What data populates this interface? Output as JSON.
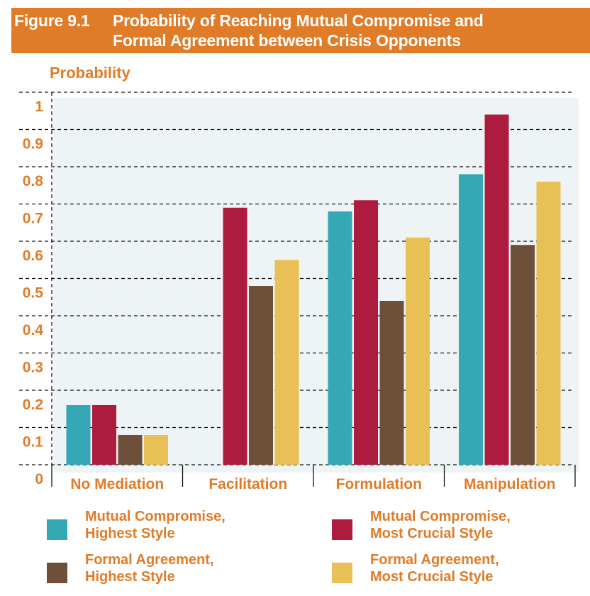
{
  "header": {
    "figure_number": "Figure 9.1",
    "title_line1": "Probability of Reaching Mutual Compromise and",
    "title_line2": "Formal Agreement between Crisis Opponents"
  },
  "colors": {
    "accent": "#E07B28",
    "plot_background": "#EEF4F5",
    "series": [
      "#35A8B5",
      "#AD1B3F",
      "#6E4F3A",
      "#E8C055"
    ]
  },
  "chart_data": {
    "type": "bar",
    "title": "Probability of Reaching Mutual Compromise and Formal Agreement between Crisis Opponents",
    "xlabel": "",
    "ylabel": "Probability",
    "ylim": [
      0,
      1
    ],
    "yticks": [
      0,
      0.1,
      0.2,
      0.3,
      0.4,
      0.5,
      0.6,
      0.7,
      0.8,
      0.9,
      1
    ],
    "ytick_labels": [
      "0",
      "0.1",
      "0.2",
      "0.3",
      "0.4",
      "0.5",
      "0.6",
      "0.7",
      "0.8",
      "0.9",
      "1"
    ],
    "grid": true,
    "legend_position": "bottom",
    "categories": [
      "No Mediation",
      "Facilitation",
      "Formulation",
      "Manipulation"
    ],
    "series": [
      {
        "name": "Mutual Compromise, Highest Style",
        "legend_lines": "Mutual Compromise,\nHighest Style",
        "values": [
          0.16,
          null,
          0.68,
          0.78
        ]
      },
      {
        "name": "Mutual Compromise, Most Crucial Style",
        "legend_lines": "Mutual Compromise,\nMost Crucial Style",
        "values": [
          0.16,
          0.69,
          0.71,
          0.94
        ]
      },
      {
        "name": "Formal Agreement, Highest Style",
        "legend_lines": "Formal Agreement,\nHighest Style",
        "values": [
          0.08,
          0.48,
          0.44,
          0.59
        ]
      },
      {
        "name": "Formal Agreement, Most Crucial Style",
        "legend_lines": "Formal Agreement,\nMost Crucial Style",
        "values": [
          0.08,
          0.55,
          0.61,
          0.76
        ]
      }
    ]
  }
}
